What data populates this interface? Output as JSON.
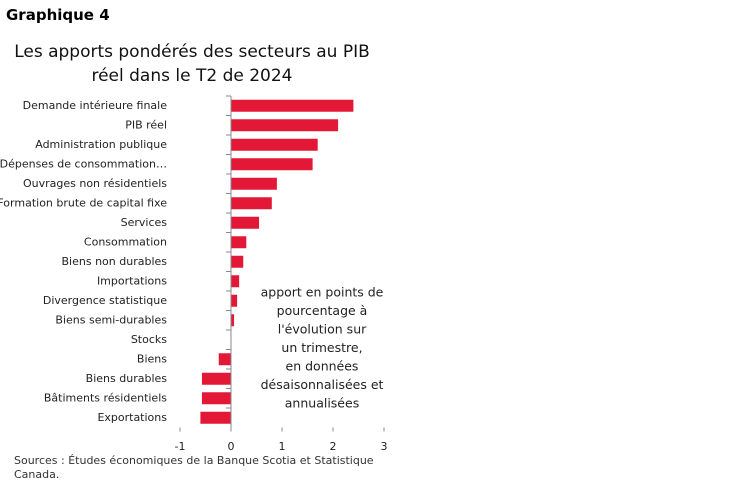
{
  "header": "Graphique 4",
  "chart_data": {
    "type": "bar",
    "orientation": "horizontal",
    "title": [
      "Les apports pondérés des secteurs au PIB",
      "réel dans le T2 de 2024"
    ],
    "categories": [
      "Demande intérieure finale",
      "PIB réel",
      "Administration publique",
      "Dépenses de consommation…",
      "Ouvrages non résidentiels",
      "Formation brute de capital fixe",
      "Services",
      "Consommation",
      "Biens non durables",
      "Importations",
      "Divergence statistique",
      "Biens semi-durables",
      "Stocks",
      "Biens",
      "Biens durables",
      "Bâtiments résidentiels",
      "Exportations"
    ],
    "values": [
      2.4,
      2.1,
      1.7,
      1.6,
      0.9,
      0.8,
      0.55,
      0.3,
      0.24,
      0.16,
      0.12,
      0.06,
      0,
      -0.24,
      -0.57,
      -0.57,
      -0.6
    ],
    "color": "#e31837",
    "xlim": [
      -1,
      3
    ],
    "xticks": [
      -1,
      0,
      1,
      2,
      3
    ],
    "annotation": [
      "apport en points de",
      "pourcentage à",
      "l'évolution sur",
      "un trimestre,",
      "en données",
      "désaisonnalisées et",
      "annualisées"
    ]
  },
  "source": "Sources : Études économiques de la Banque Scotia et Statistique Canada."
}
